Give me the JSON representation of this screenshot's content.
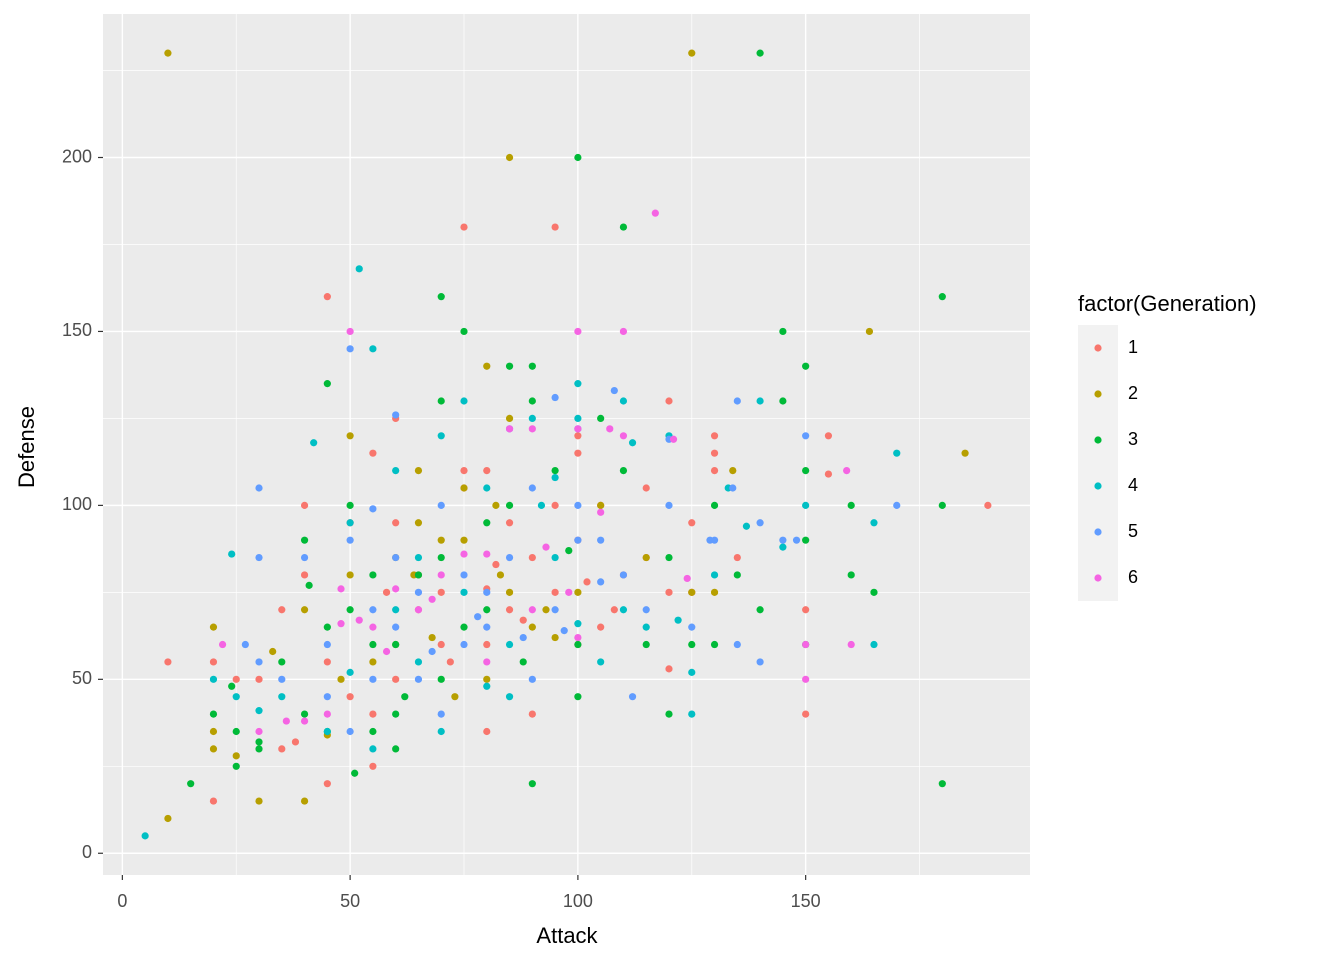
{
  "chart_data": {
    "type": "scatter",
    "x_label": "Attack",
    "y_label": "Defense",
    "legend_title": "factor(Generation)",
    "legend_position": "right",
    "grid": true,
    "xlim": [
      -4.25,
      199.25
    ],
    "ylim": [
      -6.25,
      241.25
    ],
    "xticks": [
      0,
      50,
      100,
      150
    ],
    "yticks": [
      0,
      50,
      100,
      150,
      200
    ],
    "minor_xticks": [
      25,
      75,
      125,
      175
    ],
    "minor_yticks": [
      25,
      75,
      125,
      175,
      225
    ],
    "series": [
      {
        "name": "1",
        "color": "#F8766D",
        "x": [
          10,
          20,
          20,
          25,
          35,
          35,
          40,
          40,
          45,
          45,
          55,
          55,
          60,
          60,
          65,
          70,
          75,
          75,
          75,
          80,
          80,
          80,
          85,
          90,
          90,
          95,
          95,
          100,
          100,
          100,
          105,
          115,
          120,
          120,
          125,
          130,
          130,
          130,
          135,
          150,
          150,
          155,
          155,
          190,
          65,
          70,
          80,
          50,
          55,
          60,
          45,
          85,
          95,
          105,
          110,
          125,
          100,
          102,
          82,
          38,
          30,
          50,
          58,
          72,
          88,
          108,
          115,
          120
        ],
        "y": [
          55,
          55,
          15,
          50,
          70,
          30,
          80,
          100,
          160,
          20,
          115,
          25,
          125,
          95,
          80,
          60,
          180,
          110,
          105,
          110,
          35,
          60,
          95,
          40,
          85,
          180,
          100,
          90,
          115,
          60,
          65,
          105,
          130,
          53,
          75,
          120,
          115,
          110,
          85,
          70,
          40,
          120,
          109,
          100,
          70,
          75,
          76,
          45,
          40,
          50,
          55,
          70,
          75,
          100,
          80,
          95,
          120,
          78,
          83,
          32,
          50,
          95,
          75,
          55,
          67,
          70,
          85,
          75
        ]
      },
      {
        "name": "2",
        "color": "#B79F00",
        "x": [
          10,
          10,
          20,
          20,
          20,
          25,
          30,
          33,
          40,
          40,
          45,
          50,
          50,
          55,
          60,
          64,
          65,
          75,
          80,
          85,
          85,
          85,
          82,
          95,
          105,
          115,
          125,
          125,
          130,
          134,
          164,
          185,
          75,
          70,
          80,
          90,
          100,
          68,
          48,
          60,
          65,
          73,
          83,
          93
        ],
        "y": [
          230,
          10,
          65,
          35,
          30,
          28,
          15,
          58,
          15,
          70,
          34,
          80,
          120,
          55,
          85,
          80,
          110,
          90,
          140,
          200,
          125,
          75,
          100,
          62,
          100,
          85,
          230,
          75,
          75,
          110,
          150,
          115,
          105,
          90,
          50,
          65,
          75,
          62,
          50,
          60,
          95,
          45,
          80,
          70
        ]
      },
      {
        "name": "3",
        "color": "#00BA38",
        "x": [
          15,
          20,
          24,
          25,
          25,
          30,
          30,
          35,
          40,
          40,
          41,
          45,
          45,
          50,
          50,
          51,
          55,
          55,
          60,
          60,
          65,
          70,
          70,
          70,
          75,
          80,
          85,
          85,
          90,
          90,
          90,
          95,
          100,
          100,
          100,
          105,
          110,
          110,
          120,
          120,
          125,
          130,
          130,
          135,
          140,
          140,
          145,
          145,
          150,
          150,
          150,
          150,
          160,
          160,
          165,
          180,
          180,
          180,
          60,
          75,
          70,
          80,
          55,
          45,
          88,
          98,
          115,
          62
        ],
        "y": [
          20,
          40,
          48,
          35,
          25,
          30,
          32,
          55,
          90,
          40,
          77,
          135,
          35,
          100,
          70,
          23,
          80,
          35,
          40,
          30,
          80,
          160,
          130,
          50,
          150,
          95,
          140,
          100,
          140,
          130,
          20,
          110,
          200,
          45,
          60,
          125,
          180,
          110,
          85,
          40,
          60,
          100,
          60,
          80,
          230,
          70,
          150,
          130,
          140,
          110,
          90,
          60,
          100,
          80,
          75,
          160,
          100,
          20,
          60,
          65,
          85,
          70,
          60,
          65,
          55,
          87,
          60,
          45
        ]
      },
      {
        "name": "4",
        "color": "#00BFC4",
        "x": [
          5,
          20,
          24,
          25,
          30,
          35,
          42,
          45,
          50,
          52,
          55,
          55,
          60,
          65,
          70,
          70,
          75,
          80,
          85,
          90,
          92,
          95,
          100,
          100,
          100,
          105,
          110,
          112,
          120,
          125,
          125,
          130,
          133,
          137,
          140,
          145,
          150,
          165,
          165,
          170,
          60,
          75,
          85,
          95,
          110,
          65,
          50,
          80,
          115,
          122
        ],
        "y": [
          5,
          50,
          86,
          45,
          41,
          45,
          118,
          35,
          95,
          168,
          145,
          30,
          110,
          85,
          120,
          35,
          130,
          105,
          45,
          125,
          100,
          108,
          135,
          125,
          66,
          55,
          130,
          118,
          120,
          52,
          40,
          80,
          105,
          94,
          130,
          88,
          100,
          95,
          60,
          115,
          70,
          75,
          60,
          85,
          70,
          55,
          52,
          48,
          65,
          67
        ]
      },
      {
        "name": "5",
        "color": "#619CFF",
        "x": [
          30,
          30,
          27,
          30,
          35,
          40,
          45,
          50,
          50,
          55,
          60,
          60,
          65,
          70,
          75,
          80,
          85,
          90,
          95,
          100,
          100,
          105,
          108,
          110,
          112,
          120,
          120,
          125,
          129,
          134,
          135,
          135,
          140,
          140,
          145,
          148,
          150,
          170,
          55,
          65,
          75,
          80,
          85,
          95,
          105,
          45,
          60,
          70,
          90,
          100,
          115,
          130,
          50,
          55,
          68,
          78,
          88,
          97
        ],
        "y": [
          105,
          85,
          60,
          55,
          50,
          85,
          60,
          145,
          90,
          99,
          126,
          85,
          75,
          100,
          80,
          65,
          122,
          105,
          131,
          122,
          100,
          90,
          133,
          80,
          45,
          100,
          119,
          65,
          90,
          105,
          130,
          60,
          95,
          55,
          90,
          90,
          120,
          100,
          70,
          50,
          60,
          75,
          85,
          70,
          78,
          45,
          65,
          40,
          50,
          90,
          70,
          90,
          35,
          50,
          58,
          68,
          62,
          64
        ]
      },
      {
        "name": "6",
        "color": "#F564E3",
        "x": [
          22,
          30,
          36,
          40,
          45,
          48,
          50,
          52,
          58,
          60,
          65,
          70,
          75,
          80,
          85,
          90,
          93,
          100,
          100,
          100,
          105,
          107,
          110,
          110,
          117,
          121,
          124,
          150,
          150,
          159,
          160,
          55,
          68,
          48,
          80,
          90,
          98
        ],
        "y": [
          60,
          35,
          38,
          38,
          40,
          76,
          150,
          67,
          58,
          76,
          70,
          80,
          86,
          86,
          122,
          122,
          88,
          150,
          122,
          62,
          98,
          122,
          150,
          120,
          184,
          119,
          79,
          60,
          50,
          110,
          60,
          65,
          73,
          66,
          55,
          70,
          75
        ]
      }
    ]
  }
}
